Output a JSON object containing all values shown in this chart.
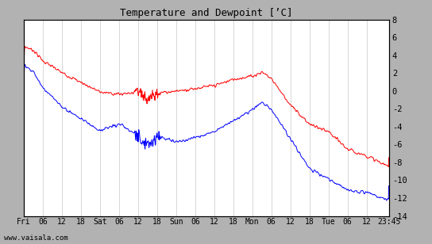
{
  "title": "Temperature and Dewpoint [’C]",
  "ylabel_right_ticks": [
    8,
    6,
    4,
    2,
    0,
    -2,
    -4,
    -6,
    -8,
    -10,
    -12,
    -14
  ],
  "ylim": [
    -14,
    8
  ],
  "xlim": [
    0,
    115
  ],
  "outer_bg_color": "#b0b0b0",
  "plot_bg_color": "#ffffff",
  "grid_color": "#c8c8c8",
  "temp_color": "#ff0000",
  "dewpoint_color": "#0000ff",
  "x_tick_labels": [
    "Fri",
    "06",
    "12",
    "18",
    "Sat",
    "06",
    "12",
    "18",
    "Sun",
    "06",
    "12",
    "18",
    "Mon",
    "06",
    "12",
    "18",
    "Tue",
    "06",
    "12",
    "23:45"
  ],
  "x_tick_positions": [
    0,
    6,
    12,
    18,
    24,
    30,
    36,
    42,
    48,
    54,
    60,
    66,
    72,
    78,
    84,
    90,
    96,
    102,
    108,
    115
  ],
  "footer_text": "www.vaisala.com",
  "linewidth": 0.7,
  "noise_scale_temp": 0.18,
  "noise_scale_dew": 0.15
}
